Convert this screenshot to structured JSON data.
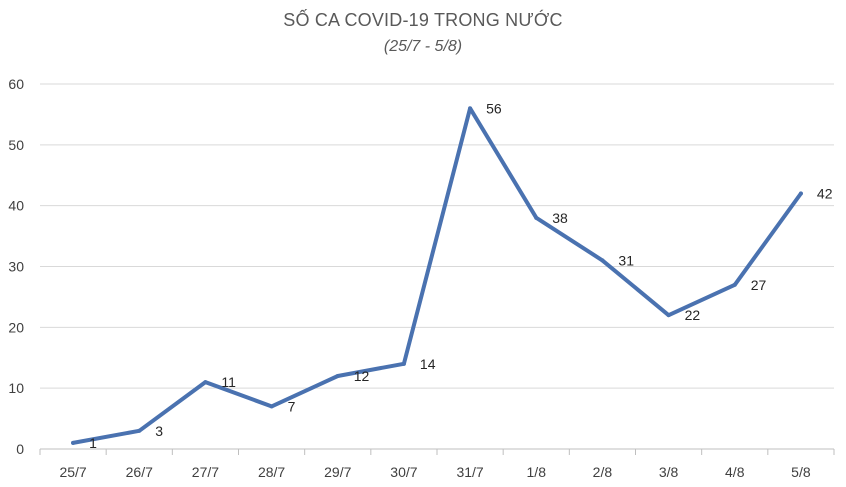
{
  "chart_data": {
    "type": "line",
    "title": "SỐ CA COVID-19 TRONG NƯỚC",
    "subtitle": "(25/7 - 5/8)",
    "categories": [
      "25/7",
      "26/7",
      "27/7",
      "28/7",
      "29/7",
      "30/7",
      "31/7",
      "1/8",
      "2/8",
      "3/8",
      "4/8",
      "5/8"
    ],
    "series": [
      {
        "values": [
          1,
          3,
          11,
          7,
          12,
          14,
          56,
          38,
          31,
          22,
          27,
          42
        ]
      }
    ],
    "ylim": [
      0,
      60
    ],
    "yticks": [
      0,
      10,
      20,
      30,
      40,
      50,
      60
    ],
    "grid": true,
    "line_color": "#4a72b0",
    "grid_color": "#d9d9d9",
    "axis_color": "#bfbfbf"
  }
}
